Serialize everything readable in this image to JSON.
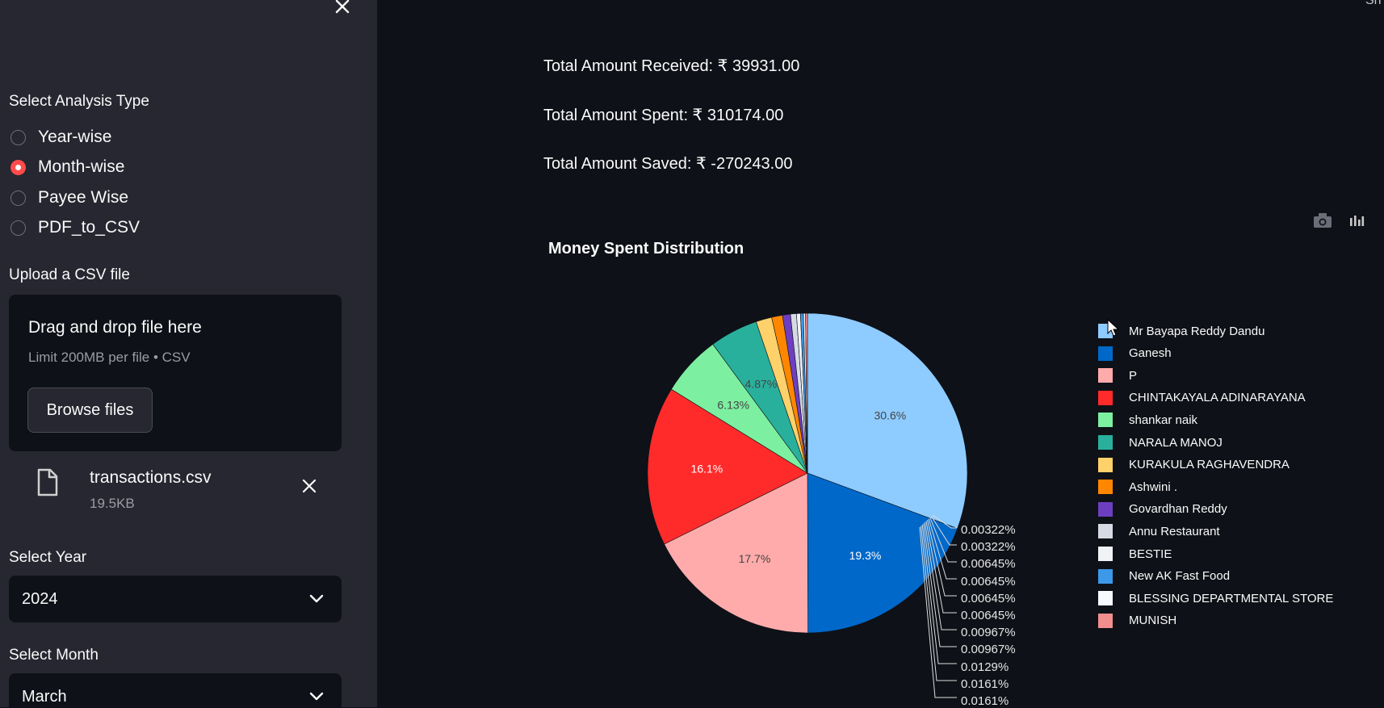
{
  "sidebar": {
    "analysis_label": "Select Analysis Type",
    "analysis_options": [
      {
        "label": "Year-wise",
        "selected": false
      },
      {
        "label": "Month-wise",
        "selected": true
      },
      {
        "label": "Payee Wise",
        "selected": false
      },
      {
        "label": "PDF_to_CSV",
        "selected": false
      }
    ],
    "upload_label": "Upload a CSV file",
    "dropzone": {
      "title": "Drag and drop file here",
      "limit": "Limit 200MB per file • CSV",
      "browse_button": "Browse files"
    },
    "file": {
      "name": "transactions.csv",
      "size": "19.5KB"
    },
    "year_label": "Select Year",
    "year_value": "2024",
    "month_label": "Select Month",
    "month_value": "March"
  },
  "header": {
    "share_text": "Sh"
  },
  "metrics": {
    "received": "Total Amount Received: ₹ 39931.00",
    "spent": "Total Amount Spent: ₹ 310174.00",
    "saved": "Total Amount Saved: ₹ -270243.00"
  },
  "colors": {
    "accent": "#ff4b4b",
    "background": "#0e1117",
    "sidebar": "#262730"
  },
  "chart_data": {
    "type": "pie",
    "title": "Money Spent Distribution",
    "legend_position": "right",
    "slices": [
      {
        "name": "Mr Bayapa Reddy Dandu",
        "value": 30.6,
        "label": "30.6%",
        "color": "#8ecbff"
      },
      {
        "name": "Ganesh",
        "value": 19.3,
        "label": "19.3%",
        "color": "#0068c9"
      },
      {
        "name": "P",
        "value": 17.7,
        "label": "17.7%",
        "color": "#ffabab"
      },
      {
        "name": "CHINTAKAYALA ADINARAYANA",
        "value": 16.1,
        "label": "16.1%",
        "color": "#ff2b2b"
      },
      {
        "name": "shankar naik",
        "value": 6.13,
        "label": "6.13%",
        "color": "#7defa1"
      },
      {
        "name": "NARALA MANOJ",
        "value": 4.87,
        "label": "4.87%",
        "color": "#29b09d"
      },
      {
        "name": "KURAKULA RAGHAVENDRA",
        "value": 1.6,
        "label": "",
        "color": "#ffd16a"
      },
      {
        "name": "Ashwini .",
        "value": 1.1,
        "label": "",
        "color": "#ff8700"
      },
      {
        "name": "Govardhan Reddy",
        "value": 0.8,
        "label": "",
        "color": "#6d3fc0"
      },
      {
        "name": "Annu Restaurant",
        "value": 0.6,
        "label": "",
        "color": "#d5dae5"
      },
      {
        "name": "BESTIE",
        "value": 0.4,
        "label": "",
        "color": "#f0f2f6"
      },
      {
        "name": "New AK Fast Food",
        "value": 0.3,
        "label": "",
        "color": "#3c98e8"
      },
      {
        "name": "BLESSING DEPARTMENTAL STORE",
        "value": 0.2,
        "label": "",
        "color": "#f8f8ff"
      },
      {
        "name": "MUNISH",
        "value": 0.2,
        "label": "",
        "color": "#f28e8e"
      }
    ],
    "small_slice_labels": [
      "0.00322%",
      "0.00322%",
      "0.00645%",
      "0.00645%",
      "0.00645%",
      "0.00645%",
      "0.00967%",
      "0.00967%",
      "0.0129%",
      "0.0161%",
      "0.0161%"
    ]
  }
}
